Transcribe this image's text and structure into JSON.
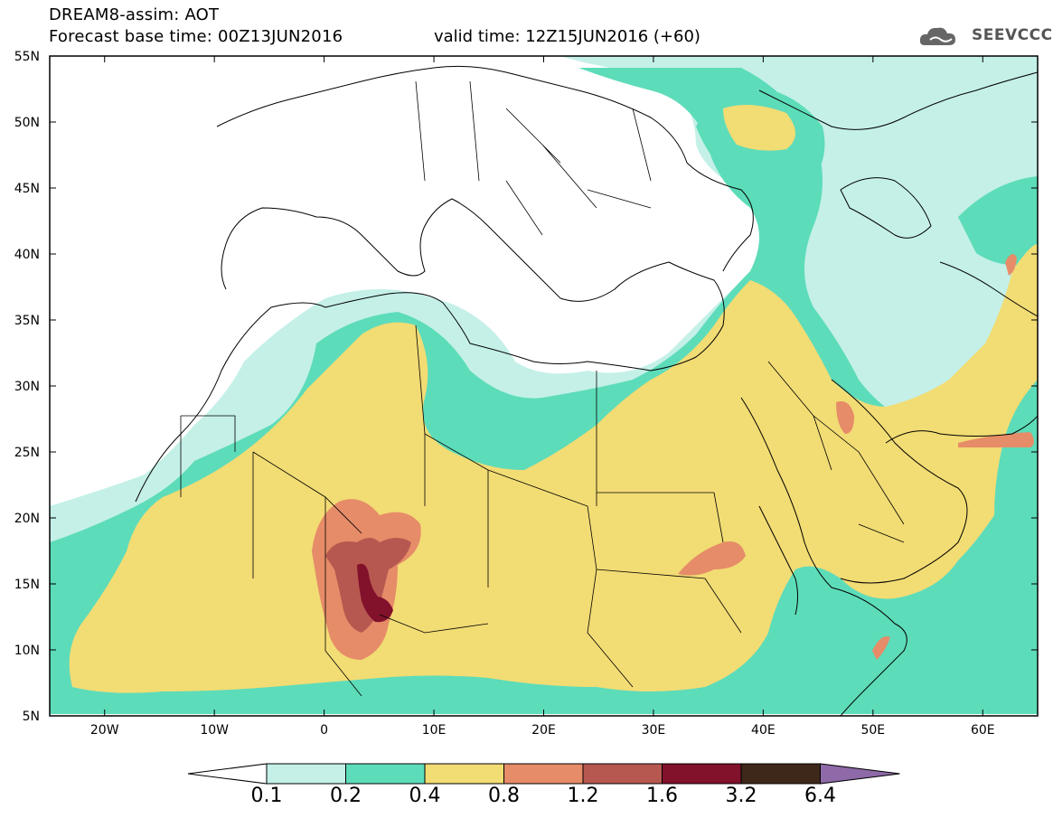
{
  "header": {
    "title": "DREAM8-assim: AOT",
    "forecast": "Forecast base time: 00Z13JUN2016",
    "valid": "valid time: 12Z15JUN2016 (+60)",
    "logo": "SEEVCCC"
  },
  "map": {
    "lat_labels": [
      "55N",
      "50N",
      "45N",
      "40N",
      "35N",
      "30N",
      "25N",
      "20N",
      "15N",
      "10N",
      "5N"
    ],
    "lon_labels": [
      "20W",
      "10W",
      "0",
      "10E",
      "20E",
      "30E",
      "40E",
      "50E",
      "60E"
    ],
    "lat_range": [
      5,
      55
    ],
    "lon_range": [
      -25,
      65
    ],
    "projection": "cylindrical",
    "colors": {
      "c01": "#c4f0e8",
      "c02": "#5ddcba",
      "c04": "#f2dc74",
      "c08": "#e68c68",
      "c12": "#b75850",
      "c16": "#82112b",
      "c32": "#3d2819",
      "c64": "#8e6aa8"
    }
  },
  "colorbar": {
    "labels": [
      "0.1",
      "0.2",
      "0.4",
      "0.8",
      "1.2",
      "1.6",
      "3.2",
      "6.4"
    ],
    "colors": [
      "#ffffff",
      "#c4f0e8",
      "#5ddcba",
      "#f2dc74",
      "#e68c68",
      "#b75850",
      "#82112b",
      "#3d2819",
      "#8e6aa8"
    ]
  }
}
